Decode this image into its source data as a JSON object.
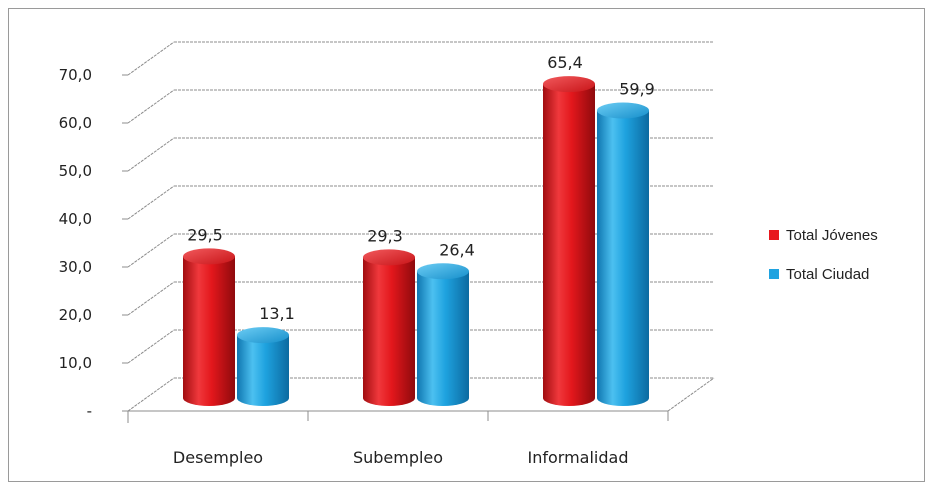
{
  "chart_data": {
    "type": "bar",
    "categories": [
      "Desempleo",
      "Subempleo",
      "Informalidad"
    ],
    "series": [
      {
        "name": "Total Jóvenes",
        "values": [
          29.5,
          29.3,
          65.4
        ],
        "color": "#e8181e"
      },
      {
        "name": "Total Ciudad",
        "values": [
          13.1,
          26.4,
          59.9
        ],
        "color": "#1fa3e0"
      }
    ],
    "data_labels": [
      [
        "29,5",
        "29,3",
        "65,4"
      ],
      [
        "13,1",
        "26,4",
        "59,9"
      ]
    ],
    "y_ticks": [
      "-",
      "10,0",
      "20,0",
      "30,0",
      "40,0",
      "50,0",
      "60,0",
      "70,0"
    ],
    "ylim": [
      0,
      70
    ],
    "grid": true,
    "legend_position": "right",
    "style": "3d-cylinder"
  }
}
